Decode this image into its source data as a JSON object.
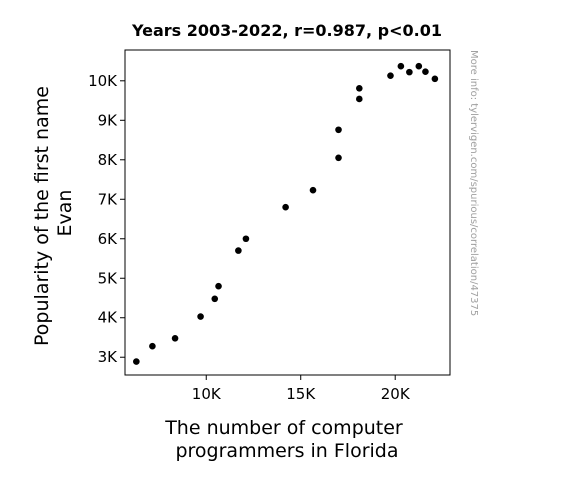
{
  "chart_data": {
    "type": "scatter",
    "title": "Years 2003-2022, r=0.987, p<0.01",
    "xlabel": [
      "The number of computer",
      "programmers in Florida"
    ],
    "ylabel": [
      "Popularity of the first name",
      "Evan"
    ],
    "watermark": "More info: tylervigen.com/spurious/correlation/47375",
    "xlim": [
      5700,
      22900
    ],
    "ylim": [
      2550,
      10780
    ],
    "xticks": [
      {
        "value": 10000,
        "label": "10K"
      },
      {
        "value": 15000,
        "label": "15K"
      },
      {
        "value": 20000,
        "label": "20K"
      }
    ],
    "yticks": [
      {
        "value": 3000,
        "label": "3K"
      },
      {
        "value": 4000,
        "label": "4K"
      },
      {
        "value": 5000,
        "label": "5K"
      },
      {
        "value": 6000,
        "label": "6K"
      },
      {
        "value": 7000,
        "label": "7K"
      },
      {
        "value": 8000,
        "label": "8K"
      },
      {
        "value": 9000,
        "label": "9K"
      },
      {
        "value": 10000,
        "label": "10K"
      }
    ],
    "grid": false,
    "marker_color": "#000000",
    "points": [
      {
        "x": 6300,
        "y": 2890
      },
      {
        "x": 7150,
        "y": 3280
      },
      {
        "x": 8350,
        "y": 3480
      },
      {
        "x": 9700,
        "y": 4030
      },
      {
        "x": 10450,
        "y": 4480
      },
      {
        "x": 10650,
        "y": 4800
      },
      {
        "x": 11700,
        "y": 5700
      },
      {
        "x": 12100,
        "y": 6000
      },
      {
        "x": 14200,
        "y": 6800
      },
      {
        "x": 15650,
        "y": 7230
      },
      {
        "x": 17000,
        "y": 8050
      },
      {
        "x": 17000,
        "y": 8760
      },
      {
        "x": 18100,
        "y": 9540
      },
      {
        "x": 18100,
        "y": 9810
      },
      {
        "x": 19750,
        "y": 10130
      },
      {
        "x": 20300,
        "y": 10370
      },
      {
        "x": 20750,
        "y": 10220
      },
      {
        "x": 21250,
        "y": 10370
      },
      {
        "x": 21600,
        "y": 10230
      },
      {
        "x": 22100,
        "y": 10050
      }
    ]
  }
}
